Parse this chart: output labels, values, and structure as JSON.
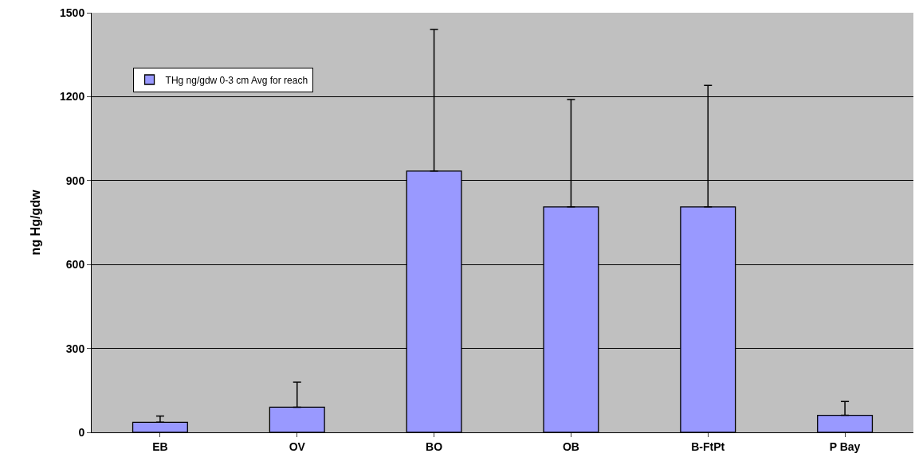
{
  "chart_data": {
    "type": "bar",
    "ylabel": "ng Hg/gdw",
    "categories": [
      "EB",
      "OV",
      "BO",
      "OB",
      "B-FtPt",
      "P Bay"
    ],
    "series": [
      {
        "name": "THg ng/gdw 0-3 cm Avg for reach",
        "color": "#9999ff",
        "values": [
          36,
          90,
          934,
          806,
          806,
          61
        ],
        "errors": [
          [
            36,
            58
          ],
          [
            90,
            179
          ],
          [
            934,
            1440
          ],
          [
            806,
            1190
          ],
          [
            806,
            1240
          ],
          [
            61,
            110
          ]
        ]
      }
    ],
    "ylim": [
      0,
      1500
    ],
    "yticks": [
      0,
      300,
      600,
      900,
      1200,
      1500
    ],
    "grid": "y",
    "legend": "top left"
  }
}
